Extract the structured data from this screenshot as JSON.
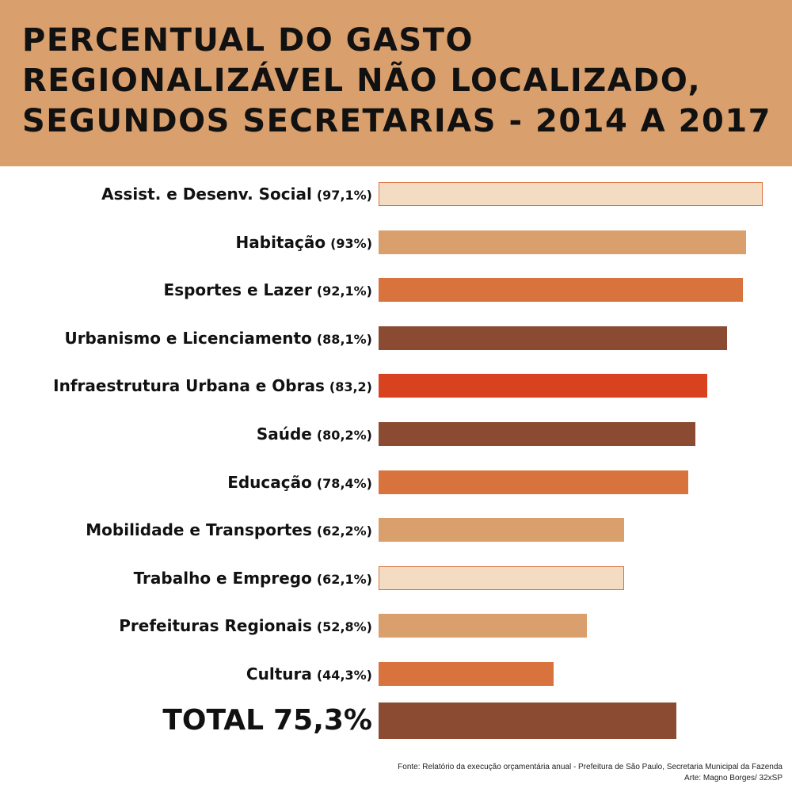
{
  "header": {
    "title_lines": [
      "PERCENTUAL DO GASTO",
      "REGIONALIZÁVEL NÃO LOCALIZADO,",
      "SEGUNDOS SECRETARIAS - 2014 A 2017"
    ]
  },
  "chart_data": {
    "type": "bar",
    "orientation": "horizontal",
    "title": "PERCENTUAL DO GASTO REGIONALIZÁVEL NÃO LOCALIZADO, SEGUNDOS SECRETARIAS - 2014 A 2017",
    "xlabel": "",
    "ylabel": "",
    "grid": false,
    "xlim": [
      0,
      100
    ],
    "categories": [
      "Assist. e Desenv. Social",
      "Habitação",
      "Esportes e Lazer",
      "Urbanismo e Licenciamento",
      "Infraestrutura Urbana e Obras",
      "Saúde",
      "Educação",
      "Mobilidade e Transportes",
      "Trabalho e Emprego",
      "Prefeituras Regionais",
      "Cultura"
    ],
    "values": [
      97.1,
      93,
      92.1,
      88.1,
      83.2,
      80.2,
      78.4,
      62.2,
      62.1,
      52.8,
      44.3
    ],
    "data_labels": [
      "(97,1%)",
      "(93%)",
      "(92,1%)",
      "(88,1%)",
      "(83,2)",
      "(80,2%)",
      "(78,4%)",
      "(62,2%)",
      "(62,1%)",
      "(52,8%)",
      "(44,3%)"
    ],
    "colors": [
      "#f3dcc2",
      "#d99f6c",
      "#d9733d",
      "#8b4b33",
      "#d9421f",
      "#8b4b33",
      "#d9733d",
      "#d99f6c",
      "#f3dcc2",
      "#d99f6c",
      "#d9733d"
    ],
    "total": {
      "label": "TOTAL",
      "value": 75.3,
      "value_label": "75,3%",
      "color": "#8b4b33"
    }
  },
  "footer": {
    "source": "Fonte: Relatório da execução orçamentária anual - Prefeitura de São Paulo, Secretaria Municipal da Fazenda",
    "credit": "Arte: Magno Borges/ 32xSP"
  }
}
